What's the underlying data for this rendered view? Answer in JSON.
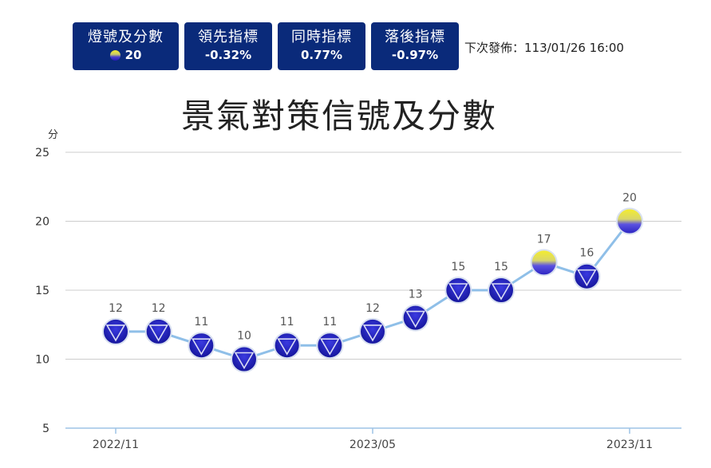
{
  "header": {
    "cards": [
      {
        "label": "燈號及分數",
        "value": "20",
        "icon": "signal-dot-yellow-blue"
      },
      {
        "label": "領先指標",
        "value": "-0.32%"
      },
      {
        "label": "同時指標",
        "value": "0.77%"
      },
      {
        "label": "落後指標",
        "value": "-0.97%"
      }
    ],
    "next_release": "下次發佈：113/01/26 16:00"
  },
  "chart_data": {
    "type": "line",
    "title": "景氣對策信號及分數",
    "ylabel": "分",
    "ylim": [
      5,
      25
    ],
    "yticks": [
      5,
      10,
      15,
      20,
      25
    ],
    "x": [
      "2022/11",
      "2022/12",
      "2023/01",
      "2023/02",
      "2023/03",
      "2023/04",
      "2023/05",
      "2023/06",
      "2023/07",
      "2023/08",
      "2023/09",
      "2023/10",
      "2023/11"
    ],
    "xtick_labels": [
      "2022/11",
      "2023/05",
      "2023/11"
    ],
    "series": [
      {
        "values": [
          12,
          12,
          11,
          10,
          11,
          11,
          12,
          13,
          15,
          15,
          17,
          16,
          20
        ],
        "signals": [
          "blue",
          "blue",
          "blue",
          "blue",
          "blue",
          "blue",
          "blue",
          "blue",
          "blue",
          "blue",
          "yellow-blue",
          "blue",
          "yellow-blue"
        ]
      }
    ],
    "grid": true,
    "colors": {
      "line": "#8fbfe8",
      "blue_marker": "#1d1db8",
      "yellow_top": "#f2ea2a",
      "grid": "#cccccc",
      "axis": "#9ec3e6"
    }
  }
}
